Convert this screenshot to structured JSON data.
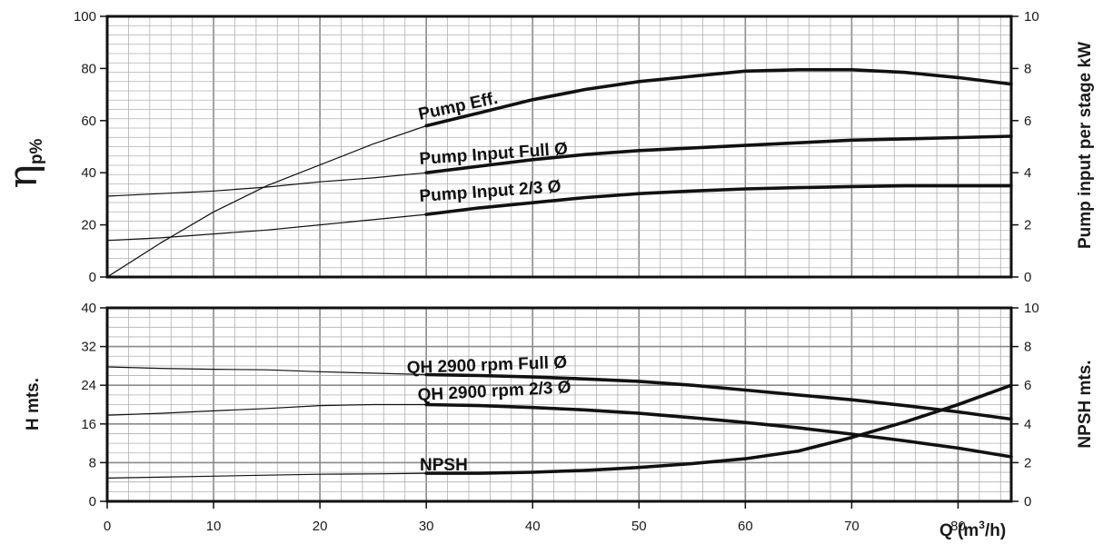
{
  "chart_data": [
    {
      "type": "line",
      "title": "",
      "xlabel": "",
      "ylabel": "η p%",
      "ylabel_symbol": "η",
      "ylabel_sub": "p%",
      "y2label": "Pump input per stage kW",
      "xlim": [
        0,
        85
      ],
      "ylim": [
        0,
        100
      ],
      "y2lim": [
        0,
        10
      ],
      "yticks": [
        0,
        20,
        40,
        60,
        80,
        100
      ],
      "y2ticks": [
        0,
        2,
        4,
        6,
        8,
        10
      ],
      "grid": true,
      "series": [
        {
          "name": "Pump Eff.",
          "axis": "left",
          "x": [
            0,
            5,
            10,
            15,
            20,
            25,
            30,
            35,
            40,
            45,
            50,
            55,
            60,
            65,
            70,
            75,
            80,
            85
          ],
          "y": [
            0,
            13,
            25,
            35,
            43,
            51,
            58,
            63,
            68,
            72,
            75,
            77,
            79,
            79.5,
            79.5,
            78.5,
            76.5,
            74
          ],
          "bold_from": 30
        },
        {
          "name": "Pump Input Full Ø",
          "axis": "right",
          "x": [
            0,
            5,
            10,
            15,
            20,
            25,
            30,
            35,
            40,
            45,
            50,
            55,
            60,
            65,
            70,
            75,
            80,
            85
          ],
          "y": [
            3.1,
            3.2,
            3.3,
            3.45,
            3.65,
            3.8,
            4.0,
            4.25,
            4.5,
            4.7,
            4.85,
            4.95,
            5.05,
            5.15,
            5.25,
            5.3,
            5.35,
            5.4
          ],
          "bold_from": 30
        },
        {
          "name": "Pump Input 2/3 Ø",
          "axis": "right",
          "x": [
            0,
            5,
            10,
            15,
            20,
            25,
            30,
            35,
            40,
            45,
            50,
            55,
            60,
            65,
            70,
            75,
            80,
            85
          ],
          "y": [
            1.4,
            1.5,
            1.65,
            1.8,
            2.0,
            2.2,
            2.4,
            2.65,
            2.85,
            3.05,
            3.2,
            3.3,
            3.38,
            3.43,
            3.47,
            3.5,
            3.5,
            3.5
          ],
          "bold_from": 30
        }
      ]
    },
    {
      "type": "line",
      "title": "",
      "xlabel": "Q (m³/h)",
      "xlabel_main": "Q (m",
      "xlabel_sup": "3",
      "xlabel_end": "/h)",
      "ylabel": "H mts.",
      "y2label": "NPSH mts.",
      "xlim": [
        0,
        85
      ],
      "xticks": [
        0,
        10,
        20,
        30,
        40,
        50,
        60,
        70,
        80
      ],
      "ylim": [
        0,
        40
      ],
      "y2lim": [
        0,
        10
      ],
      "yticks": [
        0,
        8,
        16,
        24,
        32,
        40
      ],
      "y2ticks": [
        0,
        2,
        4,
        6,
        8,
        10
      ],
      "grid": true,
      "series": [
        {
          "name": "QH 2900 rpm Full Ø",
          "axis": "left",
          "x": [
            0,
            5,
            10,
            15,
            20,
            25,
            30,
            35,
            40,
            45,
            50,
            55,
            60,
            65,
            70,
            75,
            80,
            85
          ],
          "y": [
            27.8,
            27.5,
            27.3,
            27.2,
            26.8,
            26.5,
            26.2,
            26.0,
            25.7,
            25.3,
            24.8,
            24.0,
            23.0,
            22.0,
            21.0,
            19.8,
            18.5,
            17.0
          ],
          "bold_from": 30
        },
        {
          "name": "QH 2900 rpm 2/3 Ø",
          "axis": "left",
          "x": [
            0,
            5,
            10,
            15,
            20,
            25,
            30,
            35,
            40,
            45,
            50,
            55,
            60,
            65,
            70,
            75,
            80,
            85
          ],
          "y": [
            17.8,
            18.2,
            18.7,
            19.2,
            19.8,
            20.0,
            20.0,
            19.8,
            19.4,
            18.9,
            18.2,
            17.3,
            16.3,
            15.2,
            13.9,
            12.5,
            11.0,
            9.2
          ],
          "bold_from": 30
        },
        {
          "name": "NPSH",
          "axis": "right",
          "x": [
            0,
            5,
            10,
            15,
            20,
            25,
            30,
            35,
            40,
            45,
            50,
            55,
            60,
            65,
            70,
            75,
            80,
            85
          ],
          "y": [
            1.2,
            1.25,
            1.3,
            1.35,
            1.4,
            1.42,
            1.45,
            1.45,
            1.5,
            1.6,
            1.75,
            1.95,
            2.2,
            2.6,
            3.3,
            4.1,
            5.0,
            6.0
          ],
          "bold_from": 30
        }
      ]
    }
  ]
}
